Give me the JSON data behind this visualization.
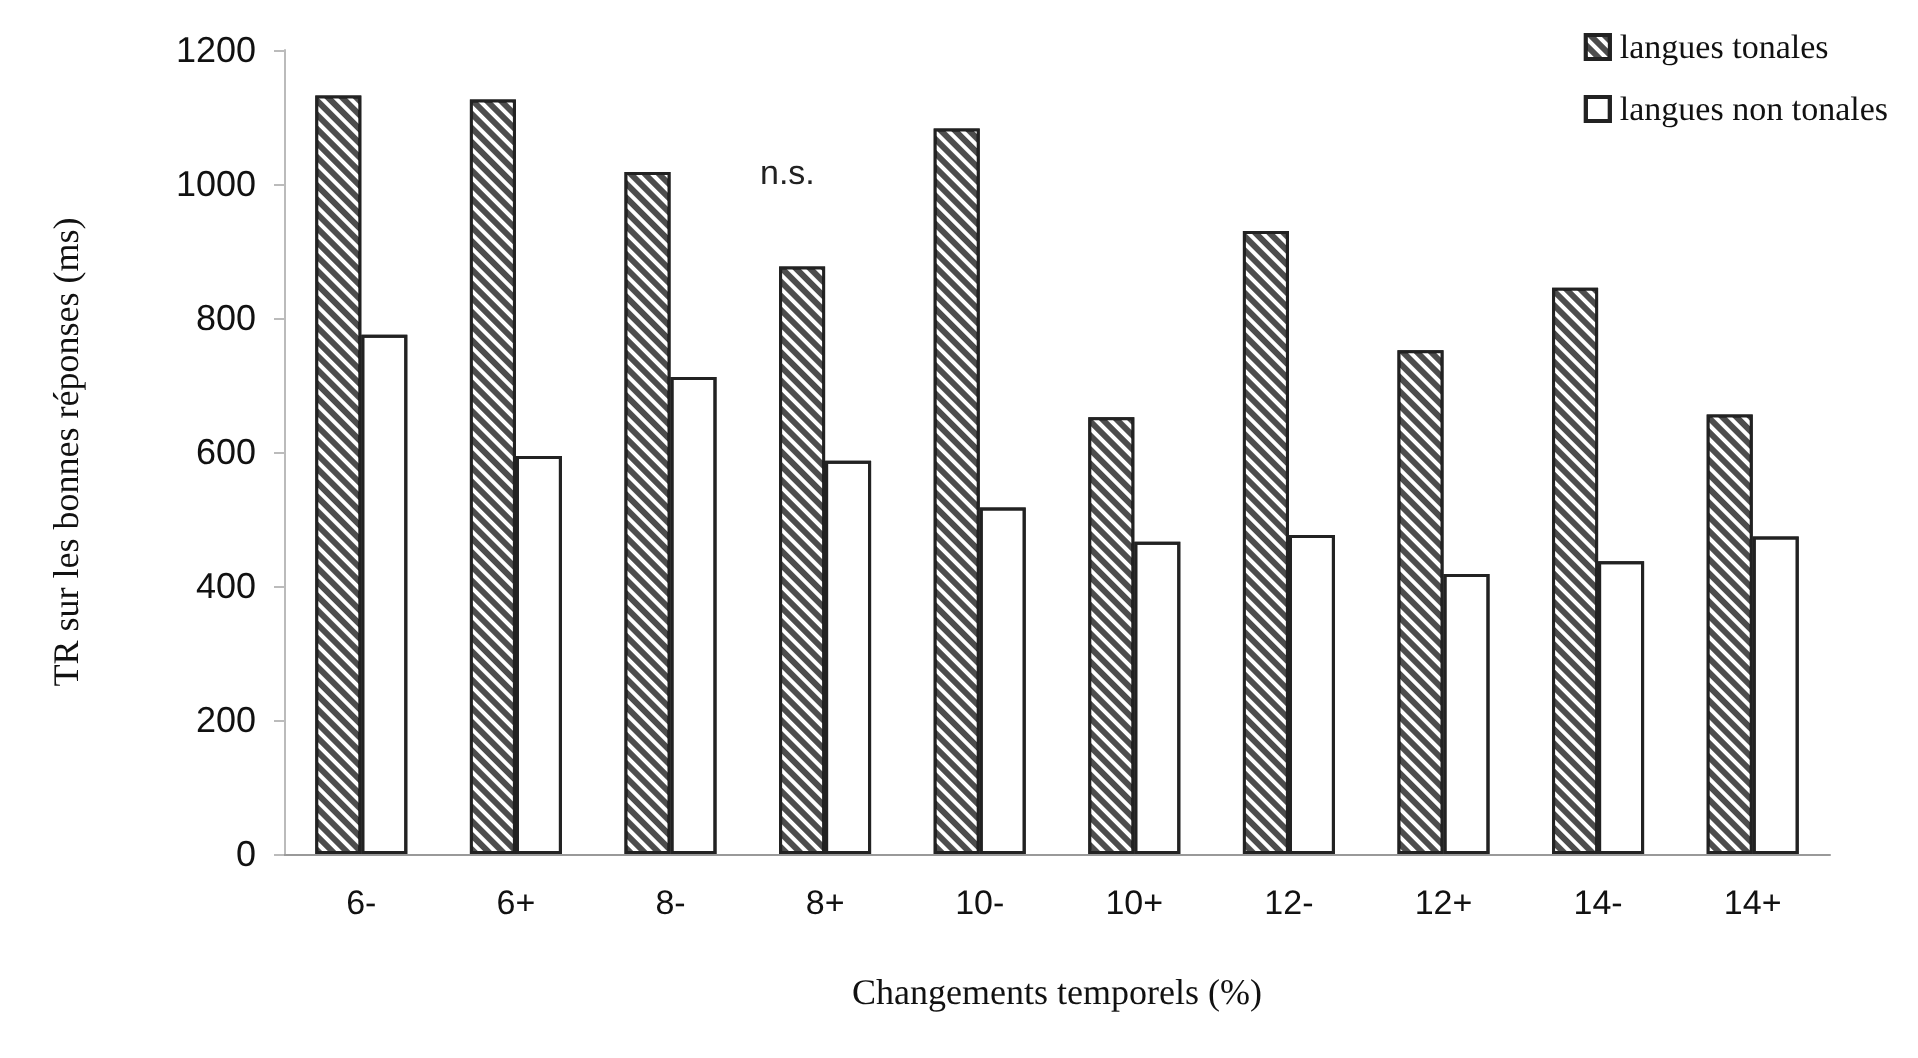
{
  "chart_data": {
    "type": "bar",
    "categories": [
      "6-",
      "6+",
      "8-",
      "8+",
      "10-",
      "10+",
      "12-",
      "12+",
      "14-",
      "14+"
    ],
    "series": [
      {
        "name": "langues tonales",
        "color": "#4d4d4d",
        "values": [
          1132,
          1126,
          1018,
          877,
          1083,
          652,
          930,
          752,
          845,
          656
        ]
      },
      {
        "name": "langues non tonales",
        "color": "#ffffff",
        "values": [
          775,
          594,
          712,
          587,
          517,
          466,
          476,
          418,
          437,
          474
        ]
      }
    ],
    "xlabel": "Changements temporels (%)",
    "ylabel": "TR sur les bonnes réponses (ms)",
    "ylim": [
      0,
      1200
    ],
    "yticks": [
      0,
      200,
      400,
      600,
      800,
      1000,
      1200
    ],
    "annotations": [
      "n.s."
    ],
    "legend": "top right",
    "grid": false
  }
}
